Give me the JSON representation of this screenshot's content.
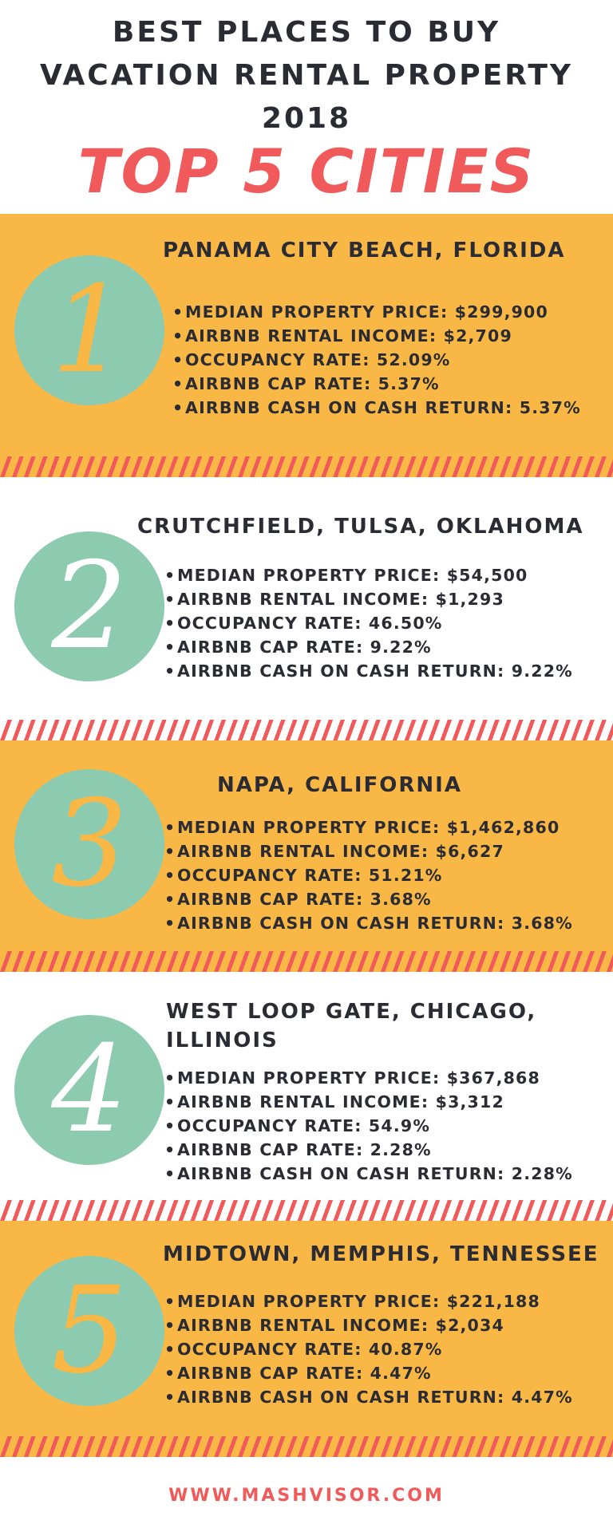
{
  "header": {
    "title_line1": "BEST PLACES TO BUY",
    "title_line2": "VACATION RENTAL PROPERTY",
    "title_line3": "2018",
    "subtitle": "TOP 5 CITIES"
  },
  "cities": [
    {
      "rank": "1",
      "name": "PANAMA CITY BEACH, FLORIDA",
      "stats": [
        "MEDIAN PROPERTY PRICE: $299,900",
        "AIRBNB RENTAL INCOME: $2,709",
        "OCCUPANCY RATE: 52.09%",
        "AIRBNB CAP RATE: 5.37%",
        "AIRBNB CASH ON CASH RETURN: 5.37%"
      ]
    },
    {
      "rank": "2",
      "name": "CRUTCHFIELD, TULSA, OKLAHOMA",
      "stats": [
        "MEDIAN PROPERTY PRICE: $54,500",
        "AIRBNB RENTAL INCOME: $1,293",
        "OCCUPANCY RATE: 46.50%",
        "AIRBNB CAP RATE: 9.22%",
        "AIRBNB CASH ON CASH RETURN: 9.22%"
      ]
    },
    {
      "rank": "3",
      "name": "NAPA, CALIFORNIA",
      "stats": [
        "MEDIAN PROPERTY PRICE: $1,462,860",
        "AIRBNB RENTAL INCOME: $6,627",
        "OCCUPANCY RATE: 51.21%",
        "AIRBNB CAP RATE: 3.68%",
        "AIRBNB CASH ON CASH RETURN: 3.68%"
      ]
    },
    {
      "rank": "4",
      "name": "WEST LOOP GATE, CHICAGO, ILLINOIS",
      "stats": [
        "MEDIAN PROPERTY PRICE: $367,868",
        "AIRBNB RENTAL INCOME: $3,312",
        "OCCUPANCY RATE: 54.9%",
        "AIRBNB CAP RATE: 2.28%",
        "AIRBNB  CASH ON CASH RETURN: 2.28%"
      ]
    },
    {
      "rank": "5",
      "name": "MIDTOWN, MEMPHIS, TENNESSEE",
      "stats": [
        "MEDIAN PROPERTY PRICE: $221,188",
        "AIRBNB RENTAL INCOME: $2,034",
        "OCCUPANCY RATE: 40.87%",
        "AIRBNB CAP RATE: 4.47%",
        "AIRBNB CASH ON CASH RETURN: 4.47%"
      ]
    }
  ],
  "footer": {
    "url": "WWW.MASHVISOR.COM"
  },
  "colors": {
    "orange": "#f9b745",
    "coral": "#f05a5a",
    "teal": "#8ccbb0",
    "dark": "#2b2b33"
  }
}
